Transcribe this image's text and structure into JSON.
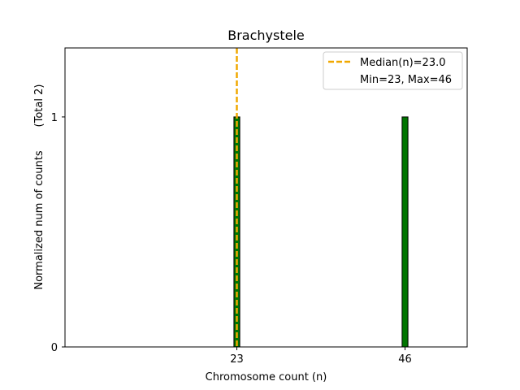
{
  "chart_data": {
    "type": "bar",
    "title": "Brachystele",
    "xlabel": "Chromosome count (n)",
    "ylabel": "Normalized num of counts",
    "ylabel_note": "(Total 2)",
    "x": [
      23,
      46
    ],
    "values": [
      1,
      1
    ],
    "xticks": [
      23,
      46
    ],
    "yticks": [
      0,
      1
    ],
    "xlim": [
      -0.5,
      54.5
    ],
    "ylim": [
      0,
      1.3
    ],
    "bar_width": 0.8,
    "median": 23.0,
    "grid": false,
    "legend_position": "top-right",
    "legend": [
      {
        "label": "Median(n)=23.0",
        "style": "dashed-line"
      },
      {
        "label": "Min=23, Max=46",
        "style": "none"
      }
    ],
    "colors": {
      "bar_fill": "#007500",
      "bar_edge": "#000000",
      "median_line": "#f0a800",
      "axes": "#000000"
    }
  }
}
